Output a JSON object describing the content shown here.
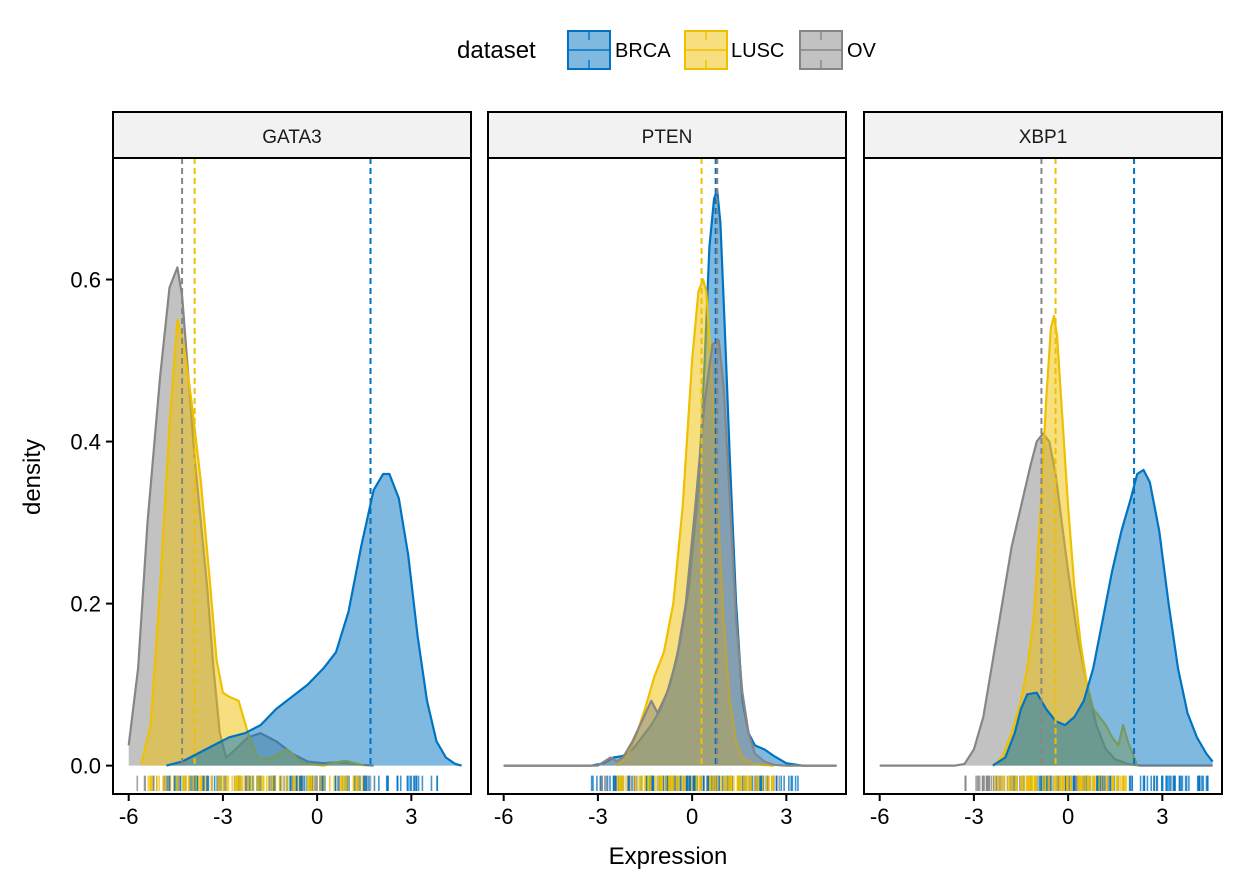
{
  "chart_data": {
    "type": "area",
    "xlabel": "Expression",
    "ylabel": "density",
    "xlim": [
      -6.5,
      4.9
    ],
    "ylim": [
      -0.035,
      0.75
    ],
    "x_ticks": [
      -6,
      -3,
      0,
      3
    ],
    "x_tick_labels": [
      "-6",
      "-3",
      "0",
      "3"
    ],
    "y_ticks": [
      0.0,
      0.2,
      0.4,
      0.6
    ],
    "y_tick_labels": [
      "0.0",
      "0.2",
      "0.4",
      "0.6"
    ],
    "legend": {
      "title": "dataset",
      "position": "top",
      "entries": [
        {
          "name": "BRCA",
          "color": "#0073C2"
        },
        {
          "name": "LUSC",
          "color": "#EFC000"
        },
        {
          "name": "OV",
          "color": "#868686"
        }
      ]
    },
    "panels": [
      {
        "title": "GATA3",
        "series": [
          {
            "name": "OV",
            "mean": -4.3,
            "rug": [
              -6.0,
              1.8
            ],
            "x": [
              -6.0,
              -5.7,
              -5.4,
              -5.0,
              -4.7,
              -4.45,
              -4.3,
              -4.1,
              -3.9,
              -3.7,
              -3.5,
              -3.3,
              -3.1,
              -2.9,
              -2.6,
              -2.2,
              -1.8,
              -1.3,
              -0.8,
              -0.3,
              0.2,
              0.6,
              1.0,
              1.4,
              1.8
            ],
            "y": [
              0.025,
              0.12,
              0.3,
              0.48,
              0.59,
              0.615,
              0.58,
              0.48,
              0.38,
              0.3,
              0.22,
              0.12,
              0.04,
              0.01,
              0.02,
              0.035,
              0.04,
              0.03,
              0.015,
              0.005,
              0.003,
              0.004,
              0.003,
              0.001,
              0.0
            ]
          },
          {
            "name": "LUSC",
            "mean": -3.9,
            "rug": [
              -5.6,
              1.5
            ],
            "x": [
              -5.6,
              -5.3,
              -5.0,
              -4.7,
              -4.45,
              -4.25,
              -4.0,
              -3.7,
              -3.4,
              -3.2,
              -3.0,
              -2.8,
              -2.5,
              -2.2,
              -1.9,
              -1.6,
              -1.3,
              -1.0,
              -0.8,
              -0.5,
              -0.2,
              0.2,
              0.6,
              0.9,
              1.2,
              1.5
            ],
            "y": [
              0.002,
              0.05,
              0.22,
              0.42,
              0.55,
              0.52,
              0.45,
              0.35,
              0.22,
              0.13,
              0.09,
              0.085,
              0.08,
              0.04,
              0.01,
              0.008,
              0.012,
              0.02,
              0.015,
              0.004,
              0.002,
              0.0,
              0.004,
              0.006,
              0.003,
              0.0
            ]
          },
          {
            "name": "BRCA",
            "mean": 1.7,
            "rug": [
              -4.8,
              3.9
            ],
            "x": [
              -4.8,
              -4.3,
              -3.8,
              -3.3,
              -2.8,
              -2.3,
              -1.8,
              -1.3,
              -0.8,
              -0.3,
              0.2,
              0.6,
              1.0,
              1.4,
              1.8,
              2.1,
              2.3,
              2.6,
              2.9,
              3.2,
              3.5,
              3.8,
              4.1,
              4.4,
              4.6
            ],
            "y": [
              0.0,
              0.005,
              0.015,
              0.025,
              0.035,
              0.04,
              0.05,
              0.07,
              0.085,
              0.1,
              0.12,
              0.14,
              0.19,
              0.27,
              0.34,
              0.36,
              0.36,
              0.33,
              0.26,
              0.16,
              0.08,
              0.03,
              0.01,
              0.002,
              0.0
            ]
          }
        ]
      },
      {
        "title": "PTEN",
        "series": [
          {
            "name": "BRCA",
            "mean": 0.75,
            "rug": [
              -3.2,
              3.5
            ],
            "x": [
              -6.0,
              -4.0,
              -3.2,
              -2.8,
              -2.5,
              -2.2,
              -1.9,
              -1.6,
              -1.3,
              -1.0,
              -0.7,
              -0.4,
              -0.1,
              0.2,
              0.4,
              0.55,
              0.7,
              0.8,
              0.9,
              1.05,
              1.2,
              1.4,
              1.6,
              1.8,
              2.0,
              2.3,
              2.6,
              3.0,
              3.5,
              4.6
            ],
            "y": [
              0.0,
              0.0,
              0.0,
              0.003,
              0.01,
              0.012,
              0.02,
              0.035,
              0.05,
              0.07,
              0.1,
              0.15,
              0.22,
              0.34,
              0.5,
              0.64,
              0.7,
              0.71,
              0.67,
              0.53,
              0.38,
              0.2,
              0.08,
              0.04,
              0.025,
              0.02,
              0.012,
              0.003,
              0.0,
              0.0
            ]
          },
          {
            "name": "LUSC",
            "mean": 0.3,
            "rug": [
              -2.4,
              2.6
            ],
            "x": [
              -2.4,
              -2.1,
              -1.8,
              -1.5,
              -1.2,
              -0.9,
              -0.6,
              -0.3,
              0.0,
              0.2,
              0.35,
              0.45,
              0.6,
              0.8,
              1.0,
              1.2,
              1.4,
              1.6,
              1.9,
              2.2,
              2.6
            ],
            "y": [
              0.0,
              0.01,
              0.035,
              0.07,
              0.11,
              0.14,
              0.2,
              0.32,
              0.5,
              0.585,
              0.6,
              0.585,
              0.5,
              0.33,
              0.18,
              0.08,
              0.03,
              0.01,
              0.003,
              0.001,
              0.0
            ]
          },
          {
            "name": "OV",
            "mean": 0.8,
            "rug": [
              -2.9,
              2.8
            ],
            "x": [
              -6.0,
              -3.0,
              -2.8,
              -2.6,
              -2.4,
              -2.2,
              -1.9,
              -1.6,
              -1.3,
              -1.1,
              -0.8,
              -0.5,
              -0.2,
              0.1,
              0.4,
              0.65,
              0.85,
              1.0,
              1.2,
              1.4,
              1.6,
              1.8,
              2.0,
              2.3,
              2.6,
              3.0,
              3.5,
              4.6
            ],
            "y": [
              0.0,
              0.0,
              0.005,
              0.01,
              0.005,
              0.01,
              0.03,
              0.055,
              0.08,
              0.065,
              0.09,
              0.13,
              0.2,
              0.32,
              0.45,
              0.52,
              0.525,
              0.47,
              0.33,
              0.18,
              0.09,
              0.04,
              0.015,
              0.005,
              0.001,
              0.0,
              0.0,
              0.0
            ]
          }
        ]
      },
      {
        "title": "XBP1",
        "series": [
          {
            "name": "OV",
            "mean": -0.85,
            "rug": [
              -3.3,
              1.5
            ],
            "x": [
              -6.0,
              -3.6,
              -3.3,
              -3.0,
              -2.7,
              -2.4,
              -2.1,
              -1.8,
              -1.5,
              -1.2,
              -1.0,
              -0.8,
              -0.6,
              -0.4,
              -0.2,
              0.0,
              0.3,
              0.6,
              0.9,
              1.2,
              1.5,
              1.9,
              2.3,
              2.8,
              3.5,
              4.6
            ],
            "y": [
              0.0,
              0.0,
              0.002,
              0.02,
              0.06,
              0.13,
              0.2,
              0.27,
              0.32,
              0.37,
              0.4,
              0.41,
              0.4,
              0.36,
              0.3,
              0.24,
              0.16,
              0.1,
              0.05,
              0.02,
              0.008,
              0.002,
              0.0,
              0.0,
              0.0,
              0.0
            ]
          },
          {
            "name": "LUSC",
            "mean": -0.4,
            "rug": [
              -2.4,
              1.9
            ],
            "x": [
              -2.4,
              -2.1,
              -1.8,
              -1.5,
              -1.3,
              -1.1,
              -0.9,
              -0.7,
              -0.55,
              -0.45,
              -0.35,
              -0.2,
              0.0,
              0.2,
              0.4,
              0.6,
              0.8,
              1.0,
              1.2,
              1.4,
              1.6,
              1.75,
              1.9,
              2.2
            ],
            "y": [
              0.0,
              0.01,
              0.04,
              0.08,
              0.12,
              0.18,
              0.3,
              0.45,
              0.54,
              0.555,
              0.53,
              0.44,
              0.32,
              0.22,
              0.15,
              0.1,
              0.07,
              0.06,
              0.05,
              0.035,
              0.025,
              0.05,
              0.03,
              0.0
            ]
          },
          {
            "name": "BRCA",
            "mean": 2.1,
            "rug": [
              -2.0,
              4.6
            ],
            "x": [
              -2.4,
              -2.0,
              -1.7,
              -1.5,
              -1.3,
              -1.0,
              -0.7,
              -0.4,
              -0.1,
              0.2,
              0.5,
              0.8,
              1.1,
              1.4,
              1.7,
              2.0,
              2.2,
              2.4,
              2.6,
              2.9,
              3.2,
              3.5,
              3.8,
              4.1,
              4.4,
              4.6
            ],
            "y": [
              0.0,
              0.01,
              0.04,
              0.07,
              0.088,
              0.09,
              0.07,
              0.055,
              0.05,
              0.06,
              0.08,
              0.12,
              0.18,
              0.24,
              0.29,
              0.33,
              0.36,
              0.365,
              0.35,
              0.29,
              0.2,
              0.12,
              0.065,
              0.035,
              0.015,
              0.005
            ]
          }
        ]
      }
    ]
  }
}
